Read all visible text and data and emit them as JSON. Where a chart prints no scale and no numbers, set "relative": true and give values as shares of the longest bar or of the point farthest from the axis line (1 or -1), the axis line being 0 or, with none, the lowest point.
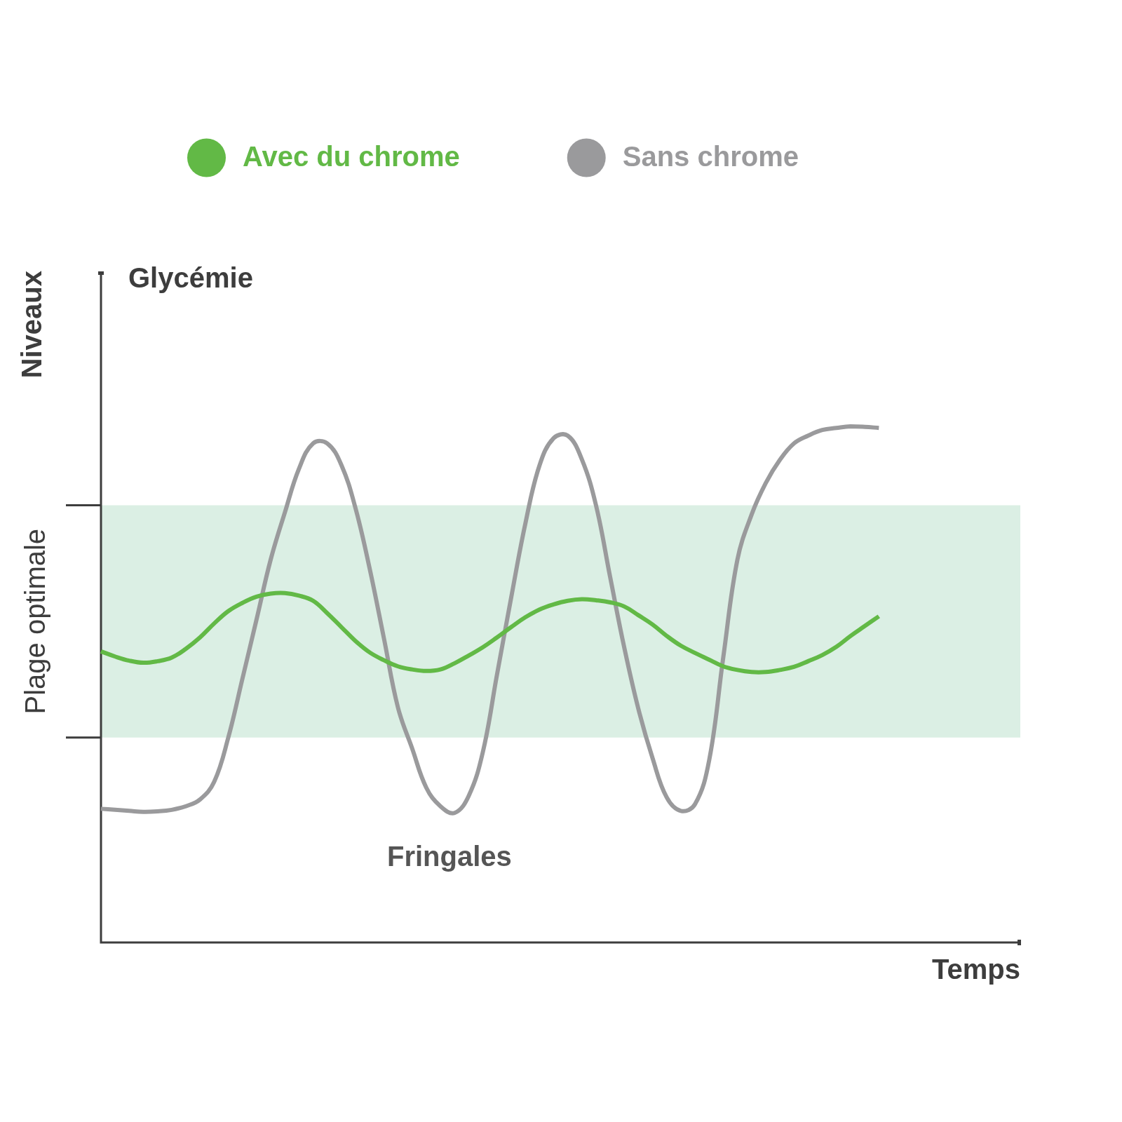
{
  "chart_data": {
    "type": "line",
    "title": "Glycémie",
    "xlabel": "Temps",
    "ylabel": "Niveaux",
    "relative": true,
    "categories": [
      null,
      null,
      null,
      null,
      null,
      null,
      null,
      null,
      null,
      null,
      null,
      null,
      null,
      null,
      null,
      null,
      null,
      null,
      null,
      null,
      null,
      null,
      null,
      null,
      null,
      null,
      null,
      null,
      null,
      null,
      null,
      null,
      null,
      null,
      null,
      null,
      null,
      null,
      null,
      null,
      null,
      null,
      null,
      null,
      null,
      null,
      null,
      null,
      null,
      null,
      null,
      null,
      null,
      null,
      null,
      null,
      null,
      null,
      null,
      null,
      null,
      null,
      null,
      null,
      null,
      null
    ],
    "series": [
      {
        "name": "Avec du chrome",
        "color": "#62b946",
        "values": [
          0.564,
          0.554,
          0.546,
          0.542,
          0.545,
          0.552,
          0.569,
          0.591,
          0.618,
          0.642,
          0.658,
          0.67,
          0.676,
          0.677,
          0.672,
          0.662,
          0.638,
          0.611,
          0.584,
          0.562,
          0.547,
          0.535,
          0.529,
          0.526,
          0.529,
          0.541,
          0.556,
          0.572,
          0.591,
          0.611,
          0.63,
          0.645,
          0.655,
          0.662,
          0.665,
          0.663,
          0.659,
          0.651,
          0.634,
          0.616,
          0.594,
          0.575,
          0.561,
          0.548,
          0.535,
          0.528,
          0.524,
          0.524,
          0.528,
          0.534,
          0.545,
          0.557,
          0.573,
          0.594,
          0.613,
          0.632,
          null,
          null,
          null,
          null,
          null,
          null,
          null,
          null,
          null,
          null
        ]
      },
      {
        "name": "Sans chrome",
        "color": "#9a9a9c",
        "values": [
          0.259,
          0.257,
          0.255,
          0.253,
          0.254,
          0.257,
          0.264,
          0.277,
          0.311,
          0.397,
          0.511,
          0.626,
          0.742,
          0.833,
          0.918,
          0.967,
          0.967,
          0.925,
          0.841,
          0.724,
          0.59,
          0.455,
          0.376,
          0.3,
          0.264,
          0.251,
          0.284,
          0.369,
          0.519,
          0.668,
          0.811,
          0.924,
          0.977,
          0.982,
          0.936,
          0.847,
          0.708,
          0.571,
          0.452,
          0.357,
          0.281,
          0.255,
          0.268,
          0.353,
          0.553,
          0.742,
          0.829,
          0.89,
          0.935,
          0.967,
          0.982,
          0.993,
          0.997,
          1.0,
          0.999,
          0.997,
          null,
          null,
          null,
          null,
          null,
          null,
          null,
          null,
          null,
          null
        ]
      }
    ],
    "bands": [
      {
        "axis": "y",
        "from": 0.397,
        "to": 0.847,
        "label": "Plage optimale",
        "color": "#dbefe4"
      }
    ],
    "annotations": [
      "Fringales"
    ],
    "legend": "top",
    "grid": false,
    "marker": "none",
    "line_style": "solid"
  }
}
